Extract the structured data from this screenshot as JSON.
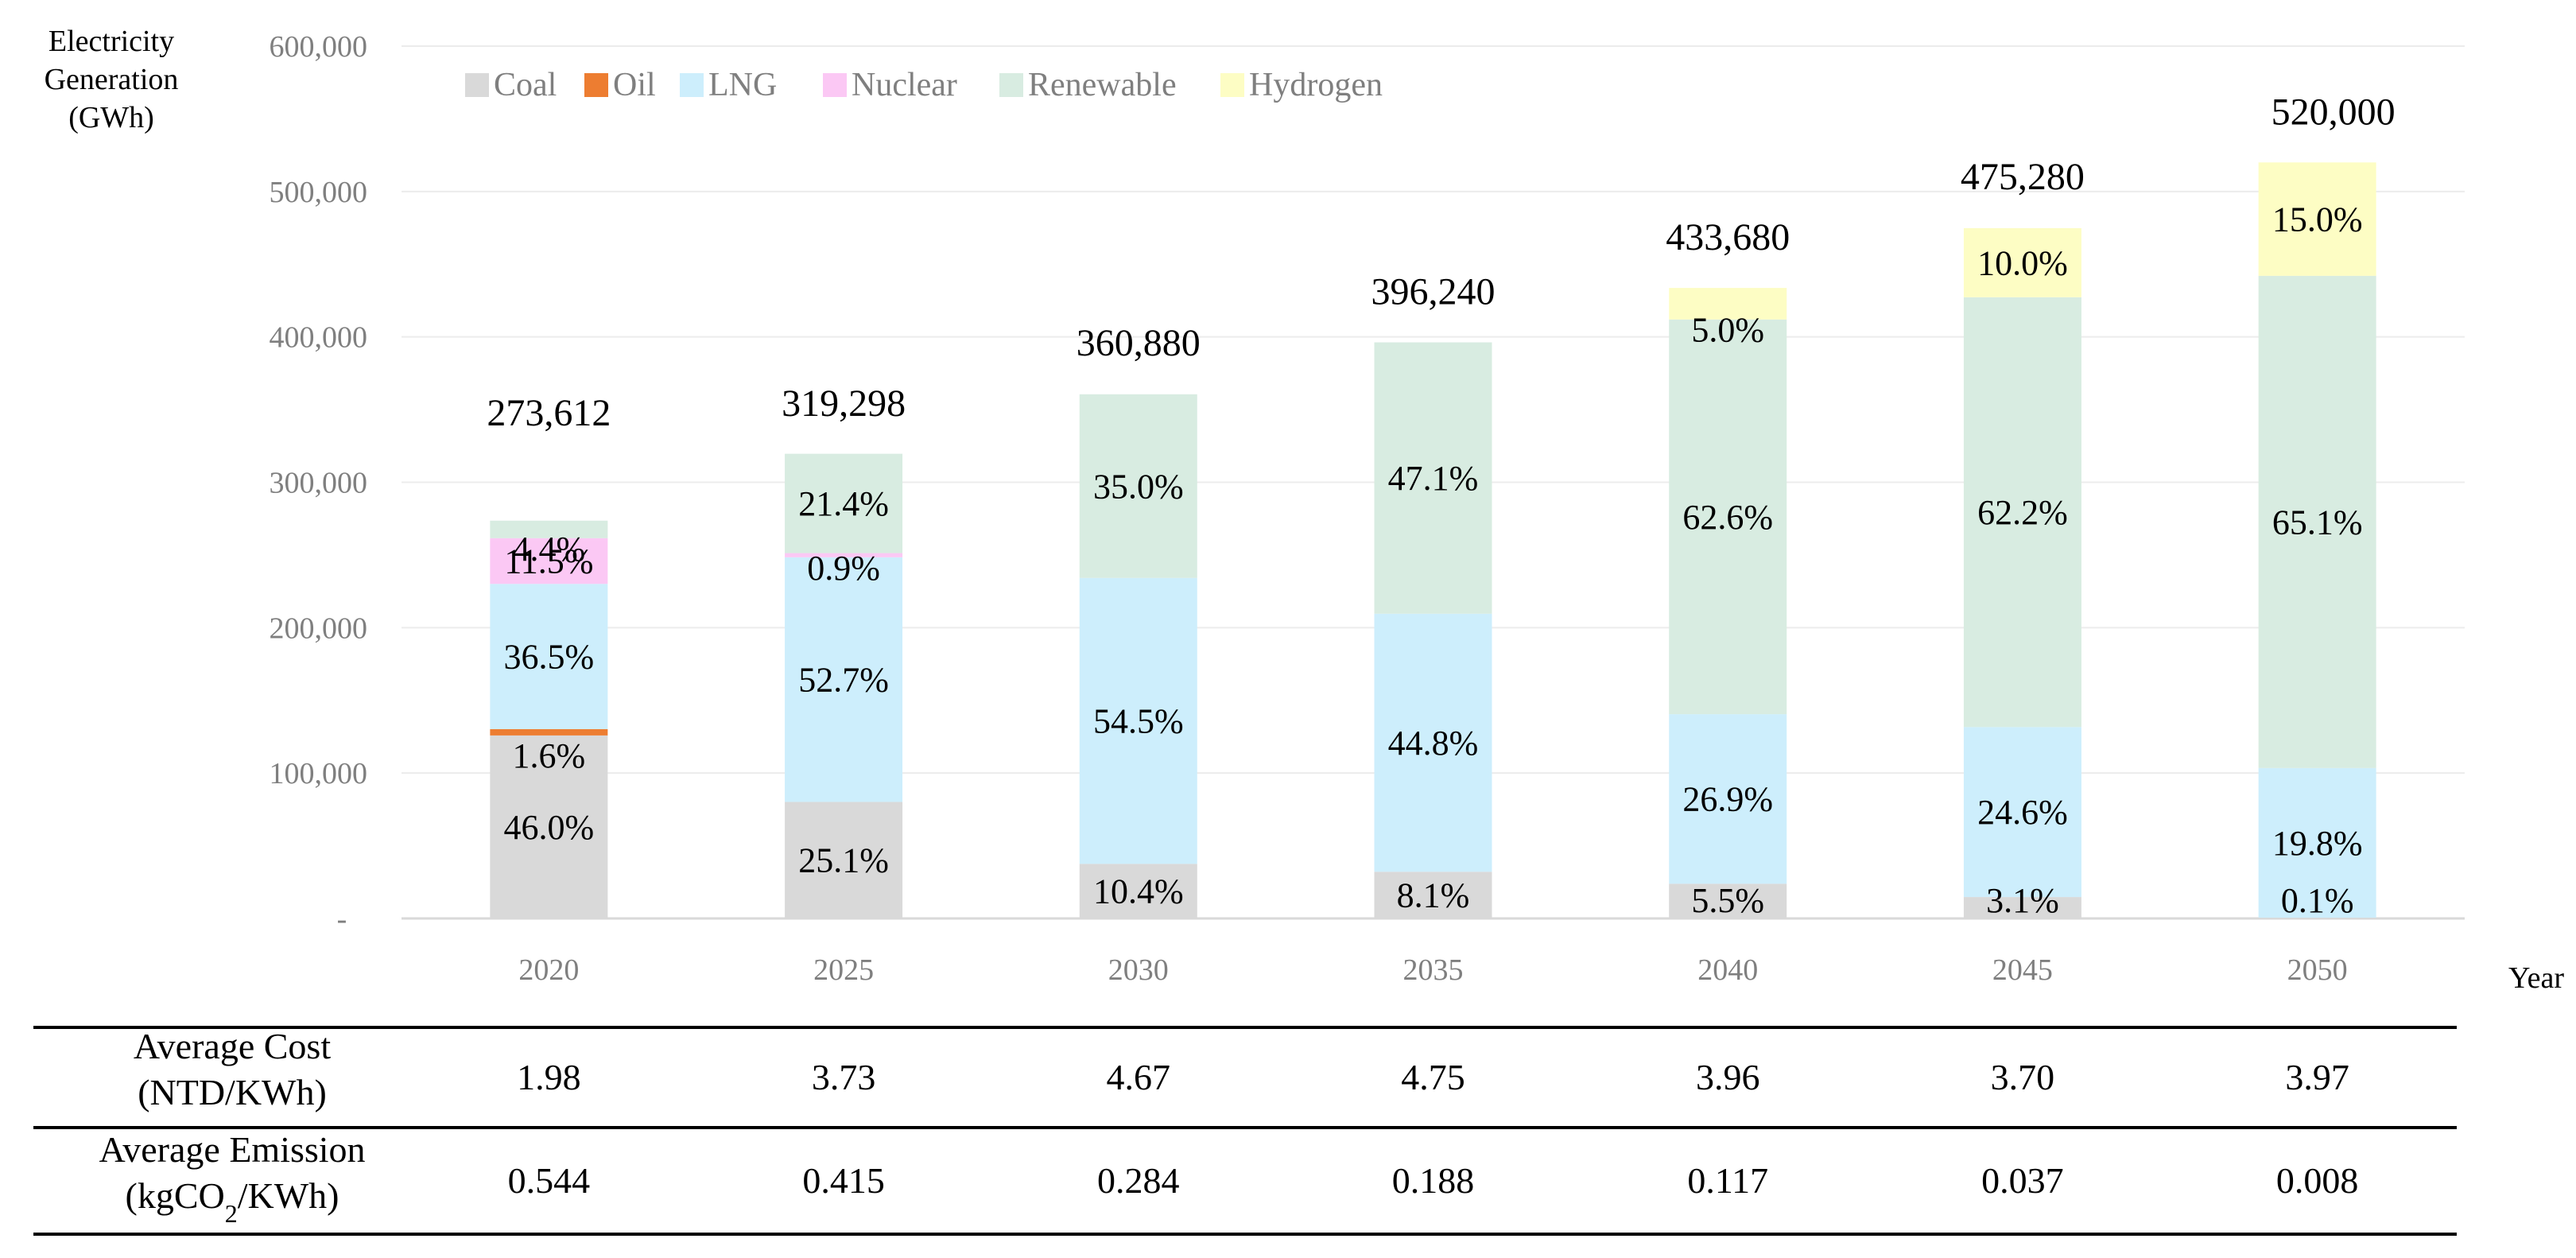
{
  "chart_data": {
    "type": "bar",
    "stacked": true,
    "ylabel": "Electricity Generation (GWh)",
    "ylabel_lines": [
      "Electricity",
      "Generation",
      "(GWh)"
    ],
    "xlabel": "Year",
    "ylim": [
      0,
      600000
    ],
    "yticks": [
      0,
      100000,
      200000,
      300000,
      400000,
      500000,
      600000
    ],
    "ytick_labels": [
      "-",
      "100,000",
      "200,000",
      "300,000",
      "400,000",
      "500,000",
      "600,000"
    ],
    "grid": true,
    "legend_position": "top-left",
    "categories": [
      "2020",
      "2025",
      "2030",
      "2035",
      "2040",
      "2045",
      "2050"
    ],
    "totals": [
      273612,
      319298,
      360880,
      396240,
      433680,
      475280,
      520000
    ],
    "total_labels": [
      "273,612",
      "319,298",
      "360,880",
      "396,240",
      "433,680",
      "475,280",
      "520,000"
    ],
    "series": [
      {
        "name": "Coal",
        "color": "#d9d9d9",
        "share_pct": [
          46.0,
          25.1,
          10.4,
          8.1,
          5.5,
          3.1,
          0.1
        ],
        "labels": [
          "46.0%",
          "25.1%",
          "10.4%",
          "8.1%",
          "5.5%",
          "3.1%",
          "0.1%"
        ]
      },
      {
        "name": "Oil",
        "color": "#ed7d31",
        "share_pct": [
          1.6,
          0,
          0,
          0,
          0,
          0,
          0
        ],
        "labels": [
          "1.6%",
          "",
          "",
          "",
          "",
          "",
          ""
        ]
      },
      {
        "name": "LNG",
        "color": "#cdeefc",
        "share_pct": [
          36.5,
          52.7,
          54.5,
          44.8,
          26.9,
          24.6,
          19.8
        ],
        "labels": [
          "36.5%",
          "52.7%",
          "54.5%",
          "44.8%",
          "26.9%",
          "24.6%",
          "19.8%"
        ]
      },
      {
        "name": "Nuclear",
        "color": "#fbc8f4",
        "share_pct": [
          11.5,
          0.9,
          0,
          0,
          0,
          0,
          0
        ],
        "labels": [
          "11.5%",
          "0.9%",
          "",
          "",
          "",
          "",
          ""
        ]
      },
      {
        "name": "Renewable",
        "color": "#d8ece1",
        "share_pct": [
          4.4,
          21.4,
          35.0,
          47.1,
          62.6,
          62.2,
          65.1
        ],
        "labels": [
          "4.4%",
          "21.4%",
          "35.0%",
          "47.1%",
          "62.6%",
          "62.2%",
          "65.1%"
        ]
      },
      {
        "name": "Hydrogen",
        "color": "#fdfdc4",
        "share_pct": [
          0,
          0,
          0,
          0,
          5.0,
          10.0,
          15.0
        ],
        "labels": [
          "",
          "",
          "",
          "",
          "5.0%",
          "10.0%",
          "15.0%"
        ]
      }
    ]
  },
  "table": {
    "rows": [
      {
        "label_lines": [
          "Average Cost",
          "(NTD/KWh)"
        ],
        "values": [
          "1.98",
          "3.73",
          "4.67",
          "4.75",
          "3.96",
          "3.70",
          "3.97"
        ]
      },
      {
        "label_lines": [
          "Average Emission",
          "(kgCO2/KWh)"
        ],
        "values": [
          "0.544",
          "0.415",
          "0.284",
          "0.188",
          "0.117",
          "0.037",
          "0.008"
        ]
      }
    ]
  }
}
